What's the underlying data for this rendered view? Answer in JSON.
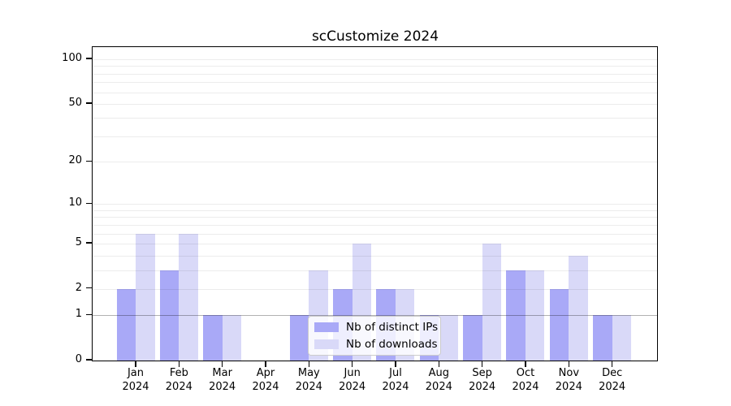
{
  "title": "scCustomize 2024",
  "colors": {
    "distinct_ips_bar": "#a9a9f7",
    "downloads_bar": "#d9d9f8",
    "axis": "#000000",
    "legend_border": "#cccccc"
  },
  "legend": {
    "items": [
      {
        "label": "Nb of distinct IPs",
        "color": "#a9a9f7"
      },
      {
        "label": "Nb of downloads",
        "color": "#d9d9f8"
      }
    ]
  },
  "chart_data": {
    "type": "bar",
    "title": "scCustomize 2024",
    "categories": [
      {
        "month": "Jan",
        "year": "2024"
      },
      {
        "month": "Feb",
        "year": "2024"
      },
      {
        "month": "Mar",
        "year": "2024"
      },
      {
        "month": "Apr",
        "year": "2024"
      },
      {
        "month": "May",
        "year": "2024"
      },
      {
        "month": "Jun",
        "year": "2024"
      },
      {
        "month": "Jul",
        "year": "2024"
      },
      {
        "month": "Aug",
        "year": "2024"
      },
      {
        "month": "Sep",
        "year": "2024"
      },
      {
        "month": "Oct",
        "year": "2024"
      },
      {
        "month": "Nov",
        "year": "2024"
      },
      {
        "month": "Dec",
        "year": "2024"
      }
    ],
    "series": [
      {
        "name": "Nb of distinct IPs",
        "color": "#a9a9f7",
        "values": [
          2,
          3,
          1,
          0,
          1,
          2,
          2,
          1,
          1,
          3,
          2,
          1
        ]
      },
      {
        "name": "Nb of downloads",
        "color": "#d9d9f8",
        "values": [
          6,
          6,
          1,
          0,
          3,
          5,
          2,
          1,
          5,
          3,
          4,
          1
        ]
      }
    ],
    "y_axis": {
      "scale": "log1p",
      "ticks": [
        0,
        1,
        2,
        5,
        10,
        20,
        50,
        100
      ],
      "minor_gridlines": [
        2,
        3,
        4,
        5,
        6,
        7,
        8,
        9,
        10,
        20,
        30,
        40,
        50,
        60,
        70,
        80,
        90,
        100
      ],
      "unit_gridline": 1
    },
    "ylim": [
      0,
      100
    ],
    "xlabel": "",
    "ylabel": "",
    "legend_position": "lower-center-inside"
  }
}
